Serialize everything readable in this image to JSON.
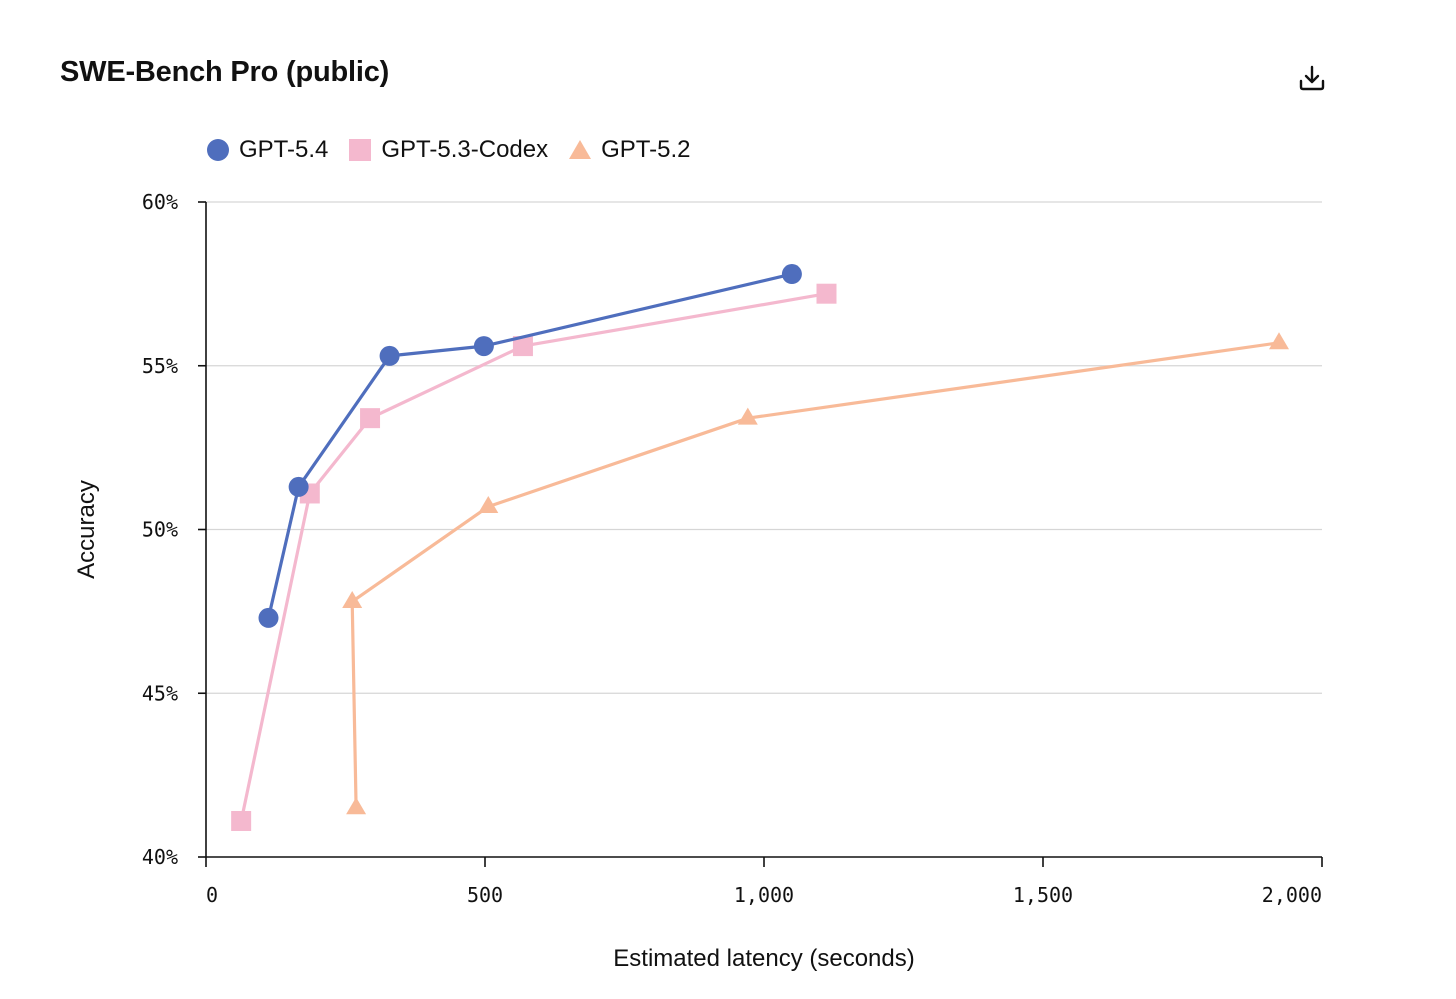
{
  "header": {
    "title": "SWE-Bench Pro (public)",
    "download_icon": "download-icon"
  },
  "chart_data": {
    "type": "line",
    "title": "SWE-Bench Pro (public)",
    "xlabel": "Estimated latency (seconds)",
    "ylabel": "Accuracy",
    "xlim": [
      0,
      2000
    ],
    "ylim": [
      40,
      60
    ],
    "xticks": [
      0,
      500,
      1000,
      1500,
      2000
    ],
    "xtick_labels": [
      "0",
      "500",
      "1,000",
      "1,500",
      "2,000"
    ],
    "yticks": [
      40,
      45,
      50,
      55,
      60
    ],
    "ytick_labels": [
      "40%",
      "45%",
      "50%",
      "55%",
      "60%"
    ],
    "grid": "horizontal",
    "legend_position": "top-left",
    "series": [
      {
        "name": "GPT-5.4",
        "marker": "circle",
        "color": "#4F6EBD",
        "x": [
          112,
          166,
          329,
          498,
          1050
        ],
        "y": [
          47.3,
          51.3,
          55.3,
          55.6,
          57.8
        ]
      },
      {
        "name": "GPT-5.3-Codex",
        "marker": "square",
        "color": "#F4B8CE",
        "x": [
          63,
          186,
          294,
          568,
          1112
        ],
        "y": [
          41.1,
          51.1,
          53.4,
          55.6,
          57.2
        ]
      },
      {
        "name": "GPT-5.2",
        "marker": "triangle",
        "color": "#F8BA98",
        "x": [
          269,
          262,
          506,
          971,
          1923
        ],
        "y": [
          41.5,
          47.8,
          50.7,
          53.4,
          55.7
        ]
      }
    ]
  }
}
